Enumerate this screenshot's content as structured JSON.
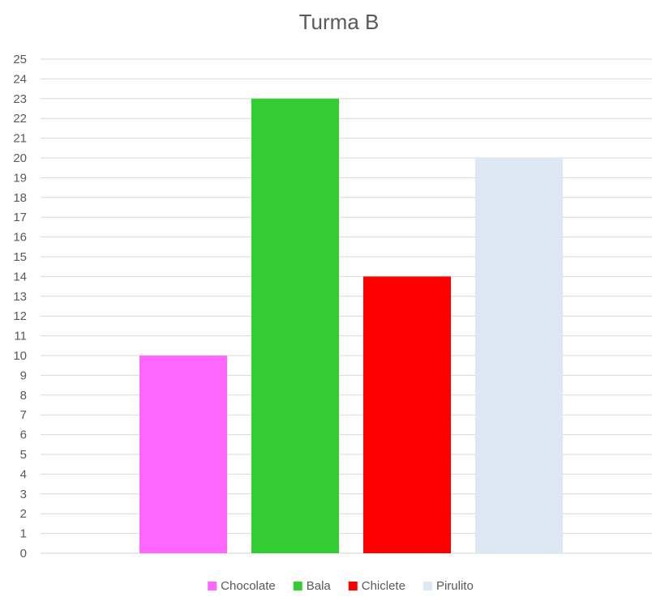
{
  "chart_data": {
    "type": "bar",
    "title": "Turma B",
    "xlabel": "",
    "ylabel": "",
    "categories": [
      "Chocolate",
      "Bala",
      "Chiclete",
      "Pirulito"
    ],
    "values": [
      10,
      23,
      14,
      20
    ],
    "colors": [
      "#ff66ff",
      "#33cc33",
      "#ff0000",
      "#dde8f4"
    ],
    "ylim": [
      0,
      25
    ],
    "ytick_step": 1,
    "grid": true,
    "legend_position": "bottom"
  }
}
